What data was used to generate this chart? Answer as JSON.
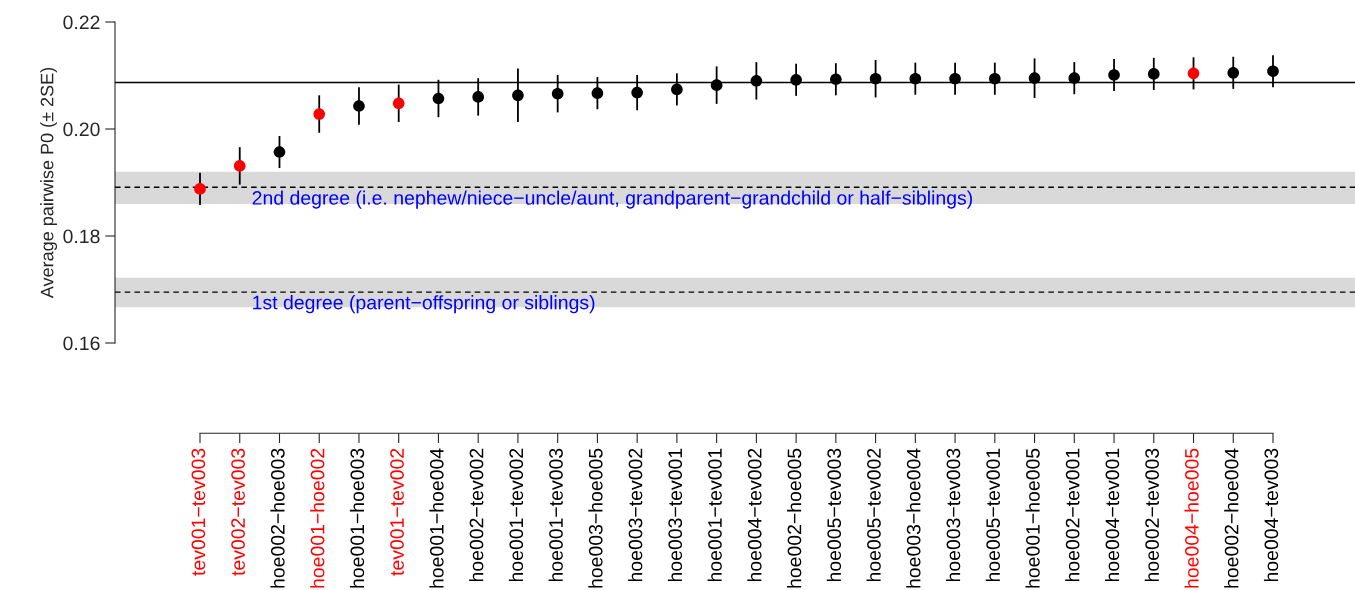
{
  "chart_data": {
    "type": "scatter",
    "ylabel": "Average pairwise P0 (± 2SE)",
    "categories": [
      "tev001−tev003",
      "tev002−tev003",
      "hoe002−hoe003",
      "hoe001−hoe002",
      "hoe001−hoe003",
      "tev001−tev002",
      "hoe001−hoe004",
      "hoe002−tev002",
      "hoe001−tev002",
      "hoe001−tev003",
      "hoe003−hoe005",
      "hoe003−tev002",
      "hoe003−tev001",
      "hoe001−tev001",
      "hoe004−tev002",
      "hoe002−hoe005",
      "hoe005−tev003",
      "hoe005−tev002",
      "hoe003−hoe004",
      "hoe003−tev003",
      "hoe005−tev001",
      "hoe001−hoe005",
      "hoe002−tev001",
      "hoe004−tev001",
      "hoe002−tev003",
      "hoe004−hoe005",
      "hoe002−hoe004",
      "hoe004−tev003"
    ],
    "values": [
      0.1888,
      0.1931,
      0.1957,
      0.2028,
      0.2043,
      0.2048,
      0.2057,
      0.206,
      0.2063,
      0.2066,
      0.2067,
      0.2068,
      0.2074,
      0.2082,
      0.209,
      0.2092,
      0.2093,
      0.2094,
      0.2094,
      0.2094,
      0.2094,
      0.2095,
      0.2095,
      0.2101,
      0.2103,
      0.2104,
      0.2105,
      0.2108
    ],
    "errors": [
      0.003,
      0.0035,
      0.003,
      0.0035,
      0.0035,
      0.0035,
      0.0035,
      0.0035,
      0.005,
      0.0035,
      0.003,
      0.0033,
      0.003,
      0.0035,
      0.0035,
      0.003,
      0.003,
      0.0035,
      0.003,
      0.003,
      0.003,
      0.0037,
      0.003,
      0.003,
      0.003,
      0.003,
      0.003,
      0.003
    ],
    "colors": [
      "#ff0000",
      "#ff0000",
      "#000000",
      "#ff0000",
      "#000000",
      "#ff0000",
      "#000000",
      "#000000",
      "#000000",
      "#000000",
      "#000000",
      "#000000",
      "#000000",
      "#000000",
      "#000000",
      "#000000",
      "#000000",
      "#000000",
      "#000000",
      "#000000",
      "#000000",
      "#000000",
      "#000000",
      "#000000",
      "#000000",
      "#ff0000",
      "#000000",
      "#000000"
    ],
    "marker": "circle",
    "ylim": [
      0.16,
      0.22
    ],
    "yticks": [
      0.16,
      0.18,
      {
        "value": 0.2,
        "label": "0.20"
      },
      0.22
    ],
    "ref_lines": [
      {
        "axis": "y",
        "value": 0.2087,
        "color": "#000000",
        "line_style": "solid"
      },
      {
        "axis": "y",
        "value": 0.1891,
        "color": "#000000",
        "line_style": "dashed"
      },
      {
        "axis": "y",
        "value": 0.1695,
        "color": "#000000",
        "line_style": "dashed"
      }
    ],
    "bands": [
      {
        "axis": "y",
        "from": 0.186,
        "to": 0.192,
        "color": "#d9d9d9",
        "label": "2nd degree (i.e. nephew/niece−uncle/aunt, grandparent−grandchild or half−siblings)"
      },
      {
        "axis": "y",
        "from": 0.1667,
        "to": 0.1722,
        "color": "#d9d9d9",
        "label": "1st degree (parent−offspring or siblings)"
      }
    ],
    "grid": false
  }
}
